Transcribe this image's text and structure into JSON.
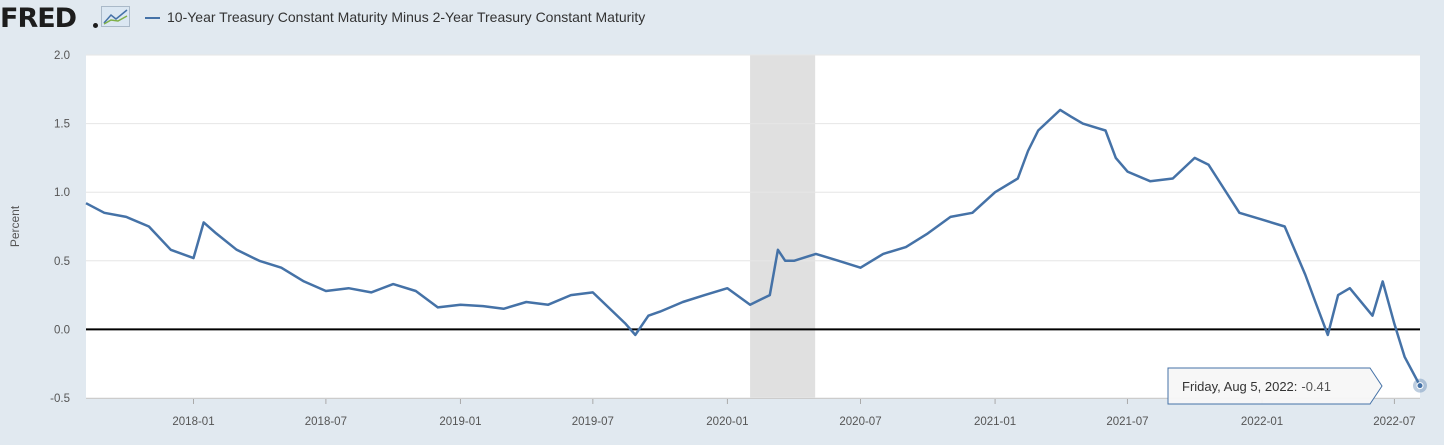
{
  "header": {
    "logo_text": "FRED",
    "legend_label": "10-Year Treasury Constant Maturity Minus 2-Year Treasury Constant Maturity"
  },
  "colors": {
    "series": "#4572a7",
    "background": "#e1e9f0",
    "plot_background": "#ffffff",
    "recession": "#e0e0e0",
    "zero_line": "#000000"
  },
  "chart_data": {
    "type": "line",
    "title": "10-Year Treasury Constant Maturity Minus 2-Year Treasury Constant Maturity",
    "ylabel": "Percent",
    "xlabel": "",
    "ylim": [
      -0.5,
      2.0
    ],
    "yticks": [
      2.0,
      1.5,
      1.0,
      0.5,
      0.0,
      -0.5
    ],
    "ytick_labels": [
      "2.0",
      "1.5",
      "1.0",
      "0.5",
      "0.0",
      "-0.5"
    ],
    "xlim": [
      "2017-08-07",
      "2022-08-05"
    ],
    "xticks": [
      "2018-01-01",
      "2018-07-01",
      "2019-01-01",
      "2019-07-01",
      "2020-01-01",
      "2020-07-01",
      "2021-01-01",
      "2021-07-01",
      "2022-01-01",
      "2022-07-01"
    ],
    "xtick_labels": [
      "2018-01",
      "2018-07",
      "2019-01",
      "2019-07",
      "2020-01",
      "2020-07",
      "2021-01",
      "2021-07",
      "2022-01",
      "2022-07"
    ],
    "grid": true,
    "reference_line": 0.0,
    "recession_shading": [
      "2020-02-01",
      "2020-04-30"
    ],
    "series": [
      {
        "name": "10-Year Treasury Constant Maturity Minus 2-Year Treasury Constant Maturity",
        "x": [
          "2017-08-07",
          "2017-09-01",
          "2017-10-01",
          "2017-11-01",
          "2017-12-01",
          "2018-01-01",
          "2018-01-15",
          "2018-02-01",
          "2018-03-01",
          "2018-04-01",
          "2018-05-01",
          "2018-06-01",
          "2018-07-01",
          "2018-08-01",
          "2018-09-01",
          "2018-10-01",
          "2018-11-01",
          "2018-12-01",
          "2019-01-01",
          "2019-02-01",
          "2019-03-01",
          "2019-04-01",
          "2019-05-01",
          "2019-06-01",
          "2019-07-01",
          "2019-08-15",
          "2019-08-28",
          "2019-09-15",
          "2019-10-01",
          "2019-11-01",
          "2019-12-01",
          "2020-01-01",
          "2020-02-01",
          "2020-02-28",
          "2020-03-10",
          "2020-03-20",
          "2020-04-01",
          "2020-05-01",
          "2020-06-01",
          "2020-07-01",
          "2020-08-01",
          "2020-09-01",
          "2020-10-01",
          "2020-11-01",
          "2020-12-01",
          "2021-01-01",
          "2021-02-01",
          "2021-02-15",
          "2021-03-01",
          "2021-03-31",
          "2021-04-15",
          "2021-05-01",
          "2021-06-01",
          "2021-06-15",
          "2021-07-01",
          "2021-08-01",
          "2021-09-01",
          "2021-10-01",
          "2021-10-20",
          "2021-11-01",
          "2021-12-01",
          "2022-01-01",
          "2022-02-01",
          "2022-03-01",
          "2022-03-15",
          "2022-04-01",
          "2022-04-15",
          "2022-05-01",
          "2022-06-01",
          "2022-06-15",
          "2022-07-01",
          "2022-07-15",
          "2022-08-05"
        ],
        "values": [
          0.92,
          0.85,
          0.82,
          0.75,
          0.58,
          0.52,
          0.78,
          0.7,
          0.58,
          0.5,
          0.45,
          0.35,
          0.28,
          0.3,
          0.27,
          0.33,
          0.28,
          0.16,
          0.18,
          0.17,
          0.15,
          0.2,
          0.18,
          0.25,
          0.27,
          0.04,
          -0.04,
          0.1,
          0.13,
          0.2,
          0.25,
          0.3,
          0.18,
          0.25,
          0.58,
          0.5,
          0.5,
          0.55,
          0.5,
          0.45,
          0.55,
          0.6,
          0.7,
          0.82,
          0.85,
          1.0,
          1.1,
          1.3,
          1.45,
          1.6,
          1.55,
          1.5,
          1.45,
          1.25,
          1.15,
          1.08,
          1.1,
          1.25,
          1.2,
          1.1,
          0.85,
          0.8,
          0.75,
          0.4,
          0.2,
          -0.04,
          0.25,
          0.3,
          0.1,
          0.35,
          0.04,
          -0.2,
          -0.41
        ]
      }
    ],
    "tooltip": {
      "date_label": "Friday, Aug 5, 2022:",
      "value_label": "-0.41"
    }
  }
}
